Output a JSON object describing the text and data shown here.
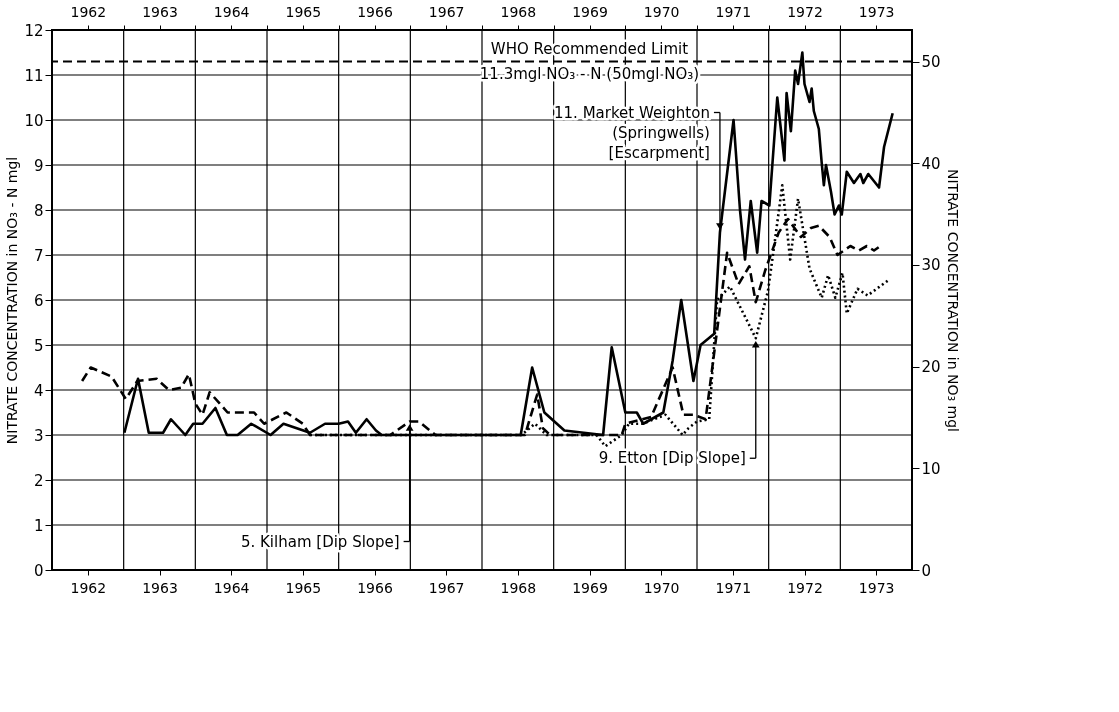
{
  "chart_data": {
    "type": "line",
    "xlim": [
      1962,
      1974
    ],
    "xticks": [
      {
        "value": 1962.5,
        "label": "1962"
      },
      {
        "value": 1963,
        "label": null
      },
      {
        "value": 1963.5,
        "label": "1963"
      },
      {
        "value": 1964,
        "label": null
      },
      {
        "value": 1964.5,
        "label": "1964"
      },
      {
        "value": 1965,
        "label": null
      },
      {
        "value": 1965.5,
        "label": "1965"
      },
      {
        "value": 1966,
        "label": null
      },
      {
        "value": 1966.5,
        "label": "1966"
      },
      {
        "value": 1967,
        "label": null
      },
      {
        "value": 1967.5,
        "label": "1967"
      },
      {
        "value": 1968,
        "label": null
      },
      {
        "value": 1968.5,
        "label": "1968"
      },
      {
        "value": 1969,
        "label": null
      },
      {
        "value": 1969.5,
        "label": "1969"
      },
      {
        "value": 1970,
        "label": null
      },
      {
        "value": 1970.5,
        "label": "1970"
      },
      {
        "value": 1971,
        "label": null
      },
      {
        "value": 1971.5,
        "label": "1971"
      },
      {
        "value": 1972,
        "label": null
      },
      {
        "value": 1972.5,
        "label": "1972"
      },
      {
        "value": 1973,
        "label": null
      },
      {
        "value": 1973.5,
        "label": "1973"
      }
    ],
    "x2lim": [
      1962,
      1974
    ],
    "x2ticks": [
      {
        "value": 1962.5,
        "label": "1962"
      },
      {
        "value": 1963,
        "label": null
      },
      {
        "value": 1963.5,
        "label": "1963"
      },
      {
        "value": 1964,
        "label": null
      },
      {
        "value": 1964.5,
        "label": "1964"
      },
      {
        "value": 1965,
        "label": null
      },
      {
        "value": 1965.5,
        "label": "1965"
      },
      {
        "value": 1966,
        "label": null
      },
      {
        "value": 1966.5,
        "label": "1966"
      },
      {
        "value": 1967,
        "label": null
      },
      {
        "value": 1967.5,
        "label": "1967"
      },
      {
        "value": 1968,
        "label": null
      },
      {
        "value": 1968.5,
        "label": "1968"
      },
      {
        "value": 1969,
        "label": null
      },
      {
        "value": 1969.5,
        "label": "1969"
      },
      {
        "value": 1970,
        "label": null
      },
      {
        "value": 1970.5,
        "label": "1970"
      },
      {
        "value": 1971,
        "label": null
      },
      {
        "value": 1971.5,
        "label": "1971"
      },
      {
        "value": 1972,
        "label": null
      },
      {
        "value": 1972.5,
        "label": "1972"
      },
      {
        "value": 1973,
        "label": null
      },
      {
        "value": 1973.5,
        "label": "1973"
      }
    ],
    "ylim": [
      0,
      12
    ],
    "yticks": [
      0,
      1,
      2,
      3,
      4,
      5,
      6,
      7,
      8,
      9,
      10,
      11,
      12
    ],
    "y2lim": [
      0,
      53.1
    ],
    "y2ticks": [
      0,
      10,
      20,
      30,
      40,
      50
    ],
    "ylabel": "NITRATE CONCENTRATION in NO₃ - N mgl",
    "y2label": "NITRATE CONCENTRATION in NO₃ mgl",
    "grid": true,
    "marker": "none",
    "series": [
      {
        "color": "#000000",
        "line_style": "solid",
        "x": [
          1963.01,
          1963.2,
          1963.35,
          1963.55,
          1963.66,
          1963.86,
          1963.97,
          1964.1,
          1964.28,
          1964.44,
          1964.59,
          1964.78,
          1965.05,
          1965.23,
          1965.6,
          1965.81,
          1966.0,
          1966.13,
          1966.24,
          1966.39,
          1966.52,
          1966.6,
          1968.54,
          1968.7,
          1968.87,
          1969.15,
          1969.69,
          1969.81,
          1970.0,
          1970.16,
          1970.25,
          1970.53,
          1970.66,
          1970.78,
          1970.95,
          1971.05,
          1971.24,
          1971.32,
          1971.51,
          1971.6,
          1971.67,
          1971.75,
          1971.84,
          1971.9,
          1972.01,
          1972.12,
          1972.22,
          1972.25,
          1972.31,
          1972.37,
          1972.41,
          1972.47,
          1972.5,
          1972.57,
          1972.6,
          1972.63,
          1972.7,
          1972.74,
          1972.77,
          1972.8,
          1972.87,
          1972.92,
          1972.98,
          1973.02,
          1973.09,
          1973.19,
          1973.28,
          1973.32,
          1973.39,
          1973.54,
          1973.61,
          1973.73
        ],
        "values": [
          3.05,
          4.25,
          3.05,
          3.05,
          3.35,
          3.0,
          3.25,
          3.25,
          3.6,
          3.0,
          3.0,
          3.25,
          3.0,
          3.25,
          3.05,
          3.25,
          3.25,
          3.3,
          3.05,
          3.35,
          3.1,
          3.0,
          3.0,
          4.5,
          3.5,
          3.1,
          3.0,
          4.95,
          3.5,
          3.5,
          3.25,
          3.5,
          4.65,
          6.0,
          4.2,
          5.0,
          5.25,
          7.5,
          10.0,
          8.0,
          6.9,
          8.2,
          7.05,
          8.2,
          8.1,
          10.5,
          9.1,
          10.6,
          9.75,
          11.1,
          10.8,
          11.5,
          10.8,
          10.4,
          10.7,
          10.2,
          9.8,
          9.05,
          8.55,
          9.0,
          8.4,
          7.9,
          8.1,
          7.9,
          8.85,
          8.6,
          8.8,
          8.6,
          8.8,
          8.5,
          9.4,
          10.15
        ]
      },
      {
        "color": "#000000",
        "line_style": "dashed",
        "x": [
          1962.42,
          1962.54,
          1962.83,
          1963.03,
          1963.19,
          1963.46,
          1963.63,
          1963.8,
          1963.91,
          1964.0,
          1964.1,
          1964.2,
          1964.45,
          1964.82,
          1964.96,
          1965.27,
          1965.5,
          1965.6,
          1966.72,
          1966.99,
          1967.12,
          1967.35,
          1968.6,
          1968.77,
          1968.85,
          1968.95,
          1969.95,
          1970.0,
          1970.36,
          1970.66,
          1970.81,
          1970.95,
          1971.12,
          1971.42,
          1971.58,
          1971.73,
          1971.82,
          1971.95,
          1972.14,
          1972.27,
          1972.45,
          1972.59,
          1972.7,
          1972.85,
          1972.96,
          1973.14,
          1973.26,
          1973.37,
          1973.47,
          1973.56
        ],
        "values": [
          4.2,
          4.5,
          4.3,
          3.8,
          4.2,
          4.25,
          4.0,
          4.05,
          4.35,
          3.7,
          3.45,
          3.95,
          3.5,
          3.5,
          3.25,
          3.5,
          3.25,
          3.0,
          3.0,
          3.3,
          3.3,
          3.0,
          3.0,
          3.9,
          3.15,
          3.0,
          3.0,
          3.25,
          3.4,
          4.5,
          3.45,
          3.45,
          3.35,
          7.05,
          6.35,
          6.75,
          5.95,
          6.65,
          7.5,
          7.8,
          7.4,
          7.6,
          7.65,
          7.4,
          7.0,
          7.2,
          7.1,
          7.2,
          7.1,
          7.2
        ]
      },
      {
        "color": "#000000",
        "line_style": "dotted",
        "x": [
          1965.6,
          1968.55,
          1968.74,
          1968.9,
          1969.6,
          1969.72,
          1969.95,
          1970.05,
          1970.24,
          1970.56,
          1970.8,
          1970.88,
          1971.0,
          1971.17,
          1971.28,
          1971.46,
          1971.82,
          1971.99,
          1972.06,
          1972.19,
          1972.3,
          1972.41,
          1972.57,
          1972.74,
          1972.83,
          1972.93,
          1973.03,
          1973.09,
          1973.24,
          1973.38,
          1973.68
        ],
        "values": [
          3.0,
          3.0,
          3.25,
          3.0,
          3.0,
          2.75,
          3.0,
          3.25,
          3.25,
          3.45,
          3.0,
          3.15,
          3.3,
          3.35,
          6.0,
          6.3,
          5.15,
          6.2,
          7.0,
          8.55,
          6.9,
          8.25,
          6.7,
          6.05,
          6.55,
          6.05,
          6.6,
          5.7,
          6.25,
          6.1,
          6.45
        ]
      }
    ],
    "ref_lines": [
      {
        "axis": "y",
        "value": 11.3,
        "label": "WHO Recommended Limit\n11.3mgl NO₃ - N (50mgl NO₃)",
        "line_style": "dashed",
        "color": "#000000"
      }
    ],
    "annotations": [
      {
        "text": "5. Kilham [Dip Slope]",
        "x": 1966.99,
        "y": 3.3
      },
      {
        "text": "11. Market Weighton\n(Springwells)\n[Escarpment]",
        "x": 1971.32,
        "y": 7.5
      },
      {
        "text": "9. Etton [Dip Slope]",
        "x": 1971.82,
        "y": 5.15
      }
    ]
  }
}
